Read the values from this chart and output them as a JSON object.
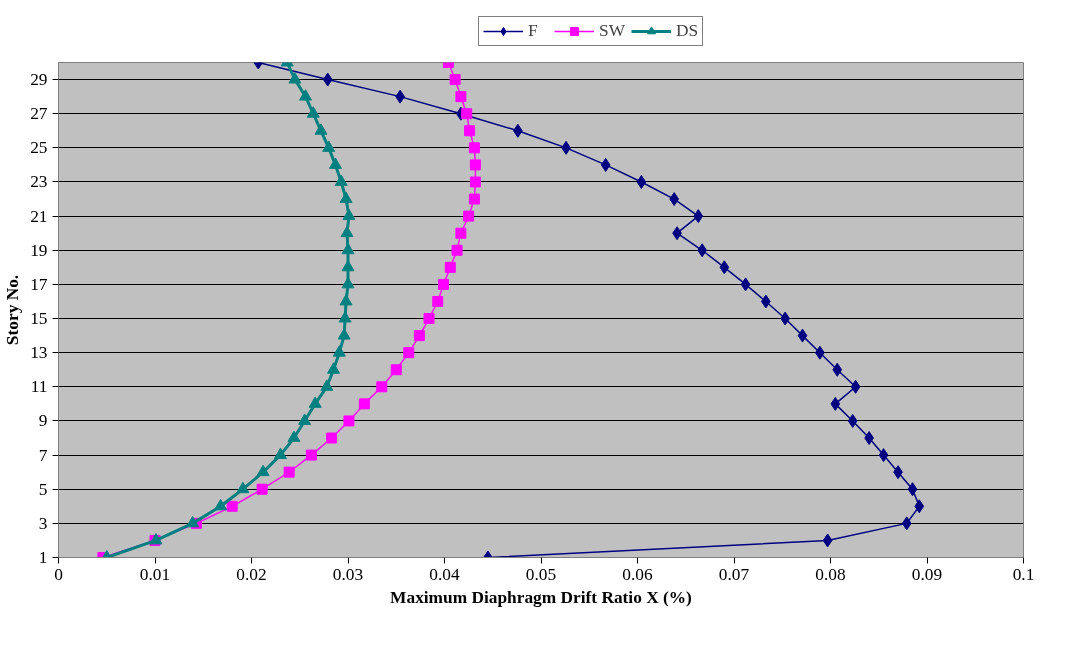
{
  "chart_data": {
    "type": "line",
    "xlabel": "Maximum Diaphragm Drift Ratio X (%)",
    "ylabel": "Story No.",
    "orientation": "horizontal",
    "x": [
      1,
      2,
      3,
      4,
      5,
      6,
      7,
      8,
      9,
      10,
      11,
      12,
      13,
      14,
      15,
      16,
      17,
      18,
      19,
      20,
      21,
      22,
      23,
      24,
      25,
      26,
      27,
      28,
      29,
      30
    ],
    "series": [
      {
        "name": "F",
        "color": "#000080",
        "marker": "diamond",
        "values": [
          0.0445,
          0.0797,
          0.0879,
          0.0892,
          0.0885,
          0.087,
          0.0855,
          0.084,
          0.0823,
          0.0805,
          0.0826,
          0.0807,
          0.0789,
          0.0771,
          0.0753,
          0.0733,
          0.0712,
          0.069,
          0.0667,
          0.0641,
          0.0663,
          0.0638,
          0.0604,
          0.0567,
          0.0526,
          0.0476,
          0.0417,
          0.0354,
          0.0279,
          0.0207
        ]
      },
      {
        "name": "SW",
        "color": "#ff00ff",
        "marker": "square",
        "values": [
          0.0046,
          0.01,
          0.0143,
          0.018,
          0.0211,
          0.0239,
          0.0262,
          0.0283,
          0.0301,
          0.0317,
          0.0335,
          0.035,
          0.0363,
          0.0374,
          0.0384,
          0.0393,
          0.0399,
          0.0406,
          0.0413,
          0.0417,
          0.0425,
          0.0431,
          0.0432,
          0.0432,
          0.0431,
          0.0426,
          0.0423,
          0.0417,
          0.0411,
          0.0404
        ]
      },
      {
        "name": "DS",
        "color": "#008080",
        "marker": "triangle",
        "values": [
          0.005,
          0.0101,
          0.0139,
          0.0168,
          0.0191,
          0.0212,
          0.023,
          0.0244,
          0.0255,
          0.0266,
          0.0278,
          0.0285,
          0.0291,
          0.0296,
          0.0297,
          0.0298,
          0.03,
          0.03,
          0.03,
          0.0299,
          0.0301,
          0.0298,
          0.0293,
          0.0287,
          0.028,
          0.0272,
          0.0264,
          0.0256,
          0.0245,
          0.0237
        ]
      }
    ],
    "xlim": [
      0,
      0.1
    ],
    "xticks": [
      0,
      0.01,
      0.02,
      0.03,
      0.04,
      0.05,
      0.06,
      0.07,
      0.08,
      0.09,
      0.1
    ],
    "ylim": [
      1,
      30
    ],
    "yticks": [
      1,
      3,
      5,
      7,
      9,
      11,
      13,
      15,
      17,
      19,
      21,
      23,
      25,
      27,
      29
    ],
    "grid": "y",
    "legend": "top",
    "line_style": "solid"
  }
}
